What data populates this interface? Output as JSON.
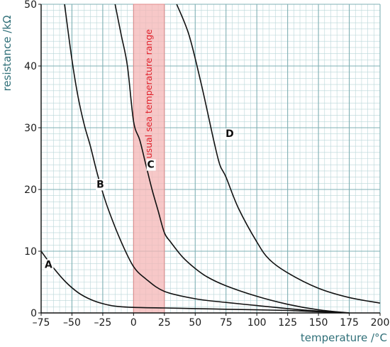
{
  "chart_data": {
    "type": "line",
    "xlabel": "temperature /°C",
    "ylabel": "resistance /kΩ",
    "xlim": [
      -75,
      200
    ],
    "ylim": [
      0,
      50
    ],
    "x_ticks": [
      -75,
      -50,
      -25,
      0,
      25,
      50,
      75,
      100,
      125,
      150,
      175,
      200
    ],
    "y_ticks": [
      0,
      10,
      20,
      30,
      40,
      50
    ],
    "grid": true,
    "band": {
      "label": "usual sea temperature range",
      "x_range": [
        0,
        25
      ],
      "color": "#f4b6b6"
    },
    "series": [
      {
        "name": "A",
        "label_at": [
          -69,
          7.3
        ],
        "x": [
          -75,
          -65,
          -55,
          -45,
          -35,
          -25,
          -15,
          0,
          25,
          50,
          75,
          100,
          125,
          150,
          175
        ],
        "y": [
          10,
          7.3,
          5.0,
          3.3,
          2.2,
          1.5,
          1.1,
          0.9,
          0.8,
          0.7,
          0.6,
          0.5,
          0.4,
          0.2,
          0.0
        ]
      },
      {
        "name": "B",
        "label_at": [
          -27,
          20.3
        ],
        "x": [
          -56,
          -50,
          -45,
          -40,
          -35,
          -30,
          -25,
          -20,
          -10,
          0,
          10,
          25,
          50,
          75,
          100,
          125,
          150,
          175
        ],
        "y": [
          50,
          41,
          35,
          30.5,
          27,
          23,
          19.5,
          16.5,
          11.5,
          7.5,
          5.5,
          3.5,
          2.3,
          1.7,
          1.2,
          0.7,
          0.3,
          0.0
        ]
      },
      {
        "name": "C",
        "label_at": [
          14,
          23.5
        ],
        "x": [
          -15,
          -10,
          -5,
          0,
          5,
          10,
          15,
          20,
          25,
          30,
          40,
          50,
          60,
          75,
          100,
          125,
          150,
          175
        ],
        "y": [
          50,
          45,
          40,
          31,
          28,
          24,
          20,
          16.5,
          13,
          11.5,
          9,
          7.2,
          5.8,
          4.4,
          2.7,
          1.4,
          0.5,
          0.0
        ]
      },
      {
        "name": "D",
        "label_at": [
          78,
          28.5
        ],
        "x": [
          35,
          45,
          55,
          65,
          70,
          75,
          85,
          100,
          110,
          125,
          150,
          175,
          200
        ],
        "y": [
          50,
          45,
          37,
          28,
          24,
          22,
          17,
          11.5,
          8.7,
          6.5,
          4,
          2.5,
          1.6
        ]
      }
    ]
  }
}
